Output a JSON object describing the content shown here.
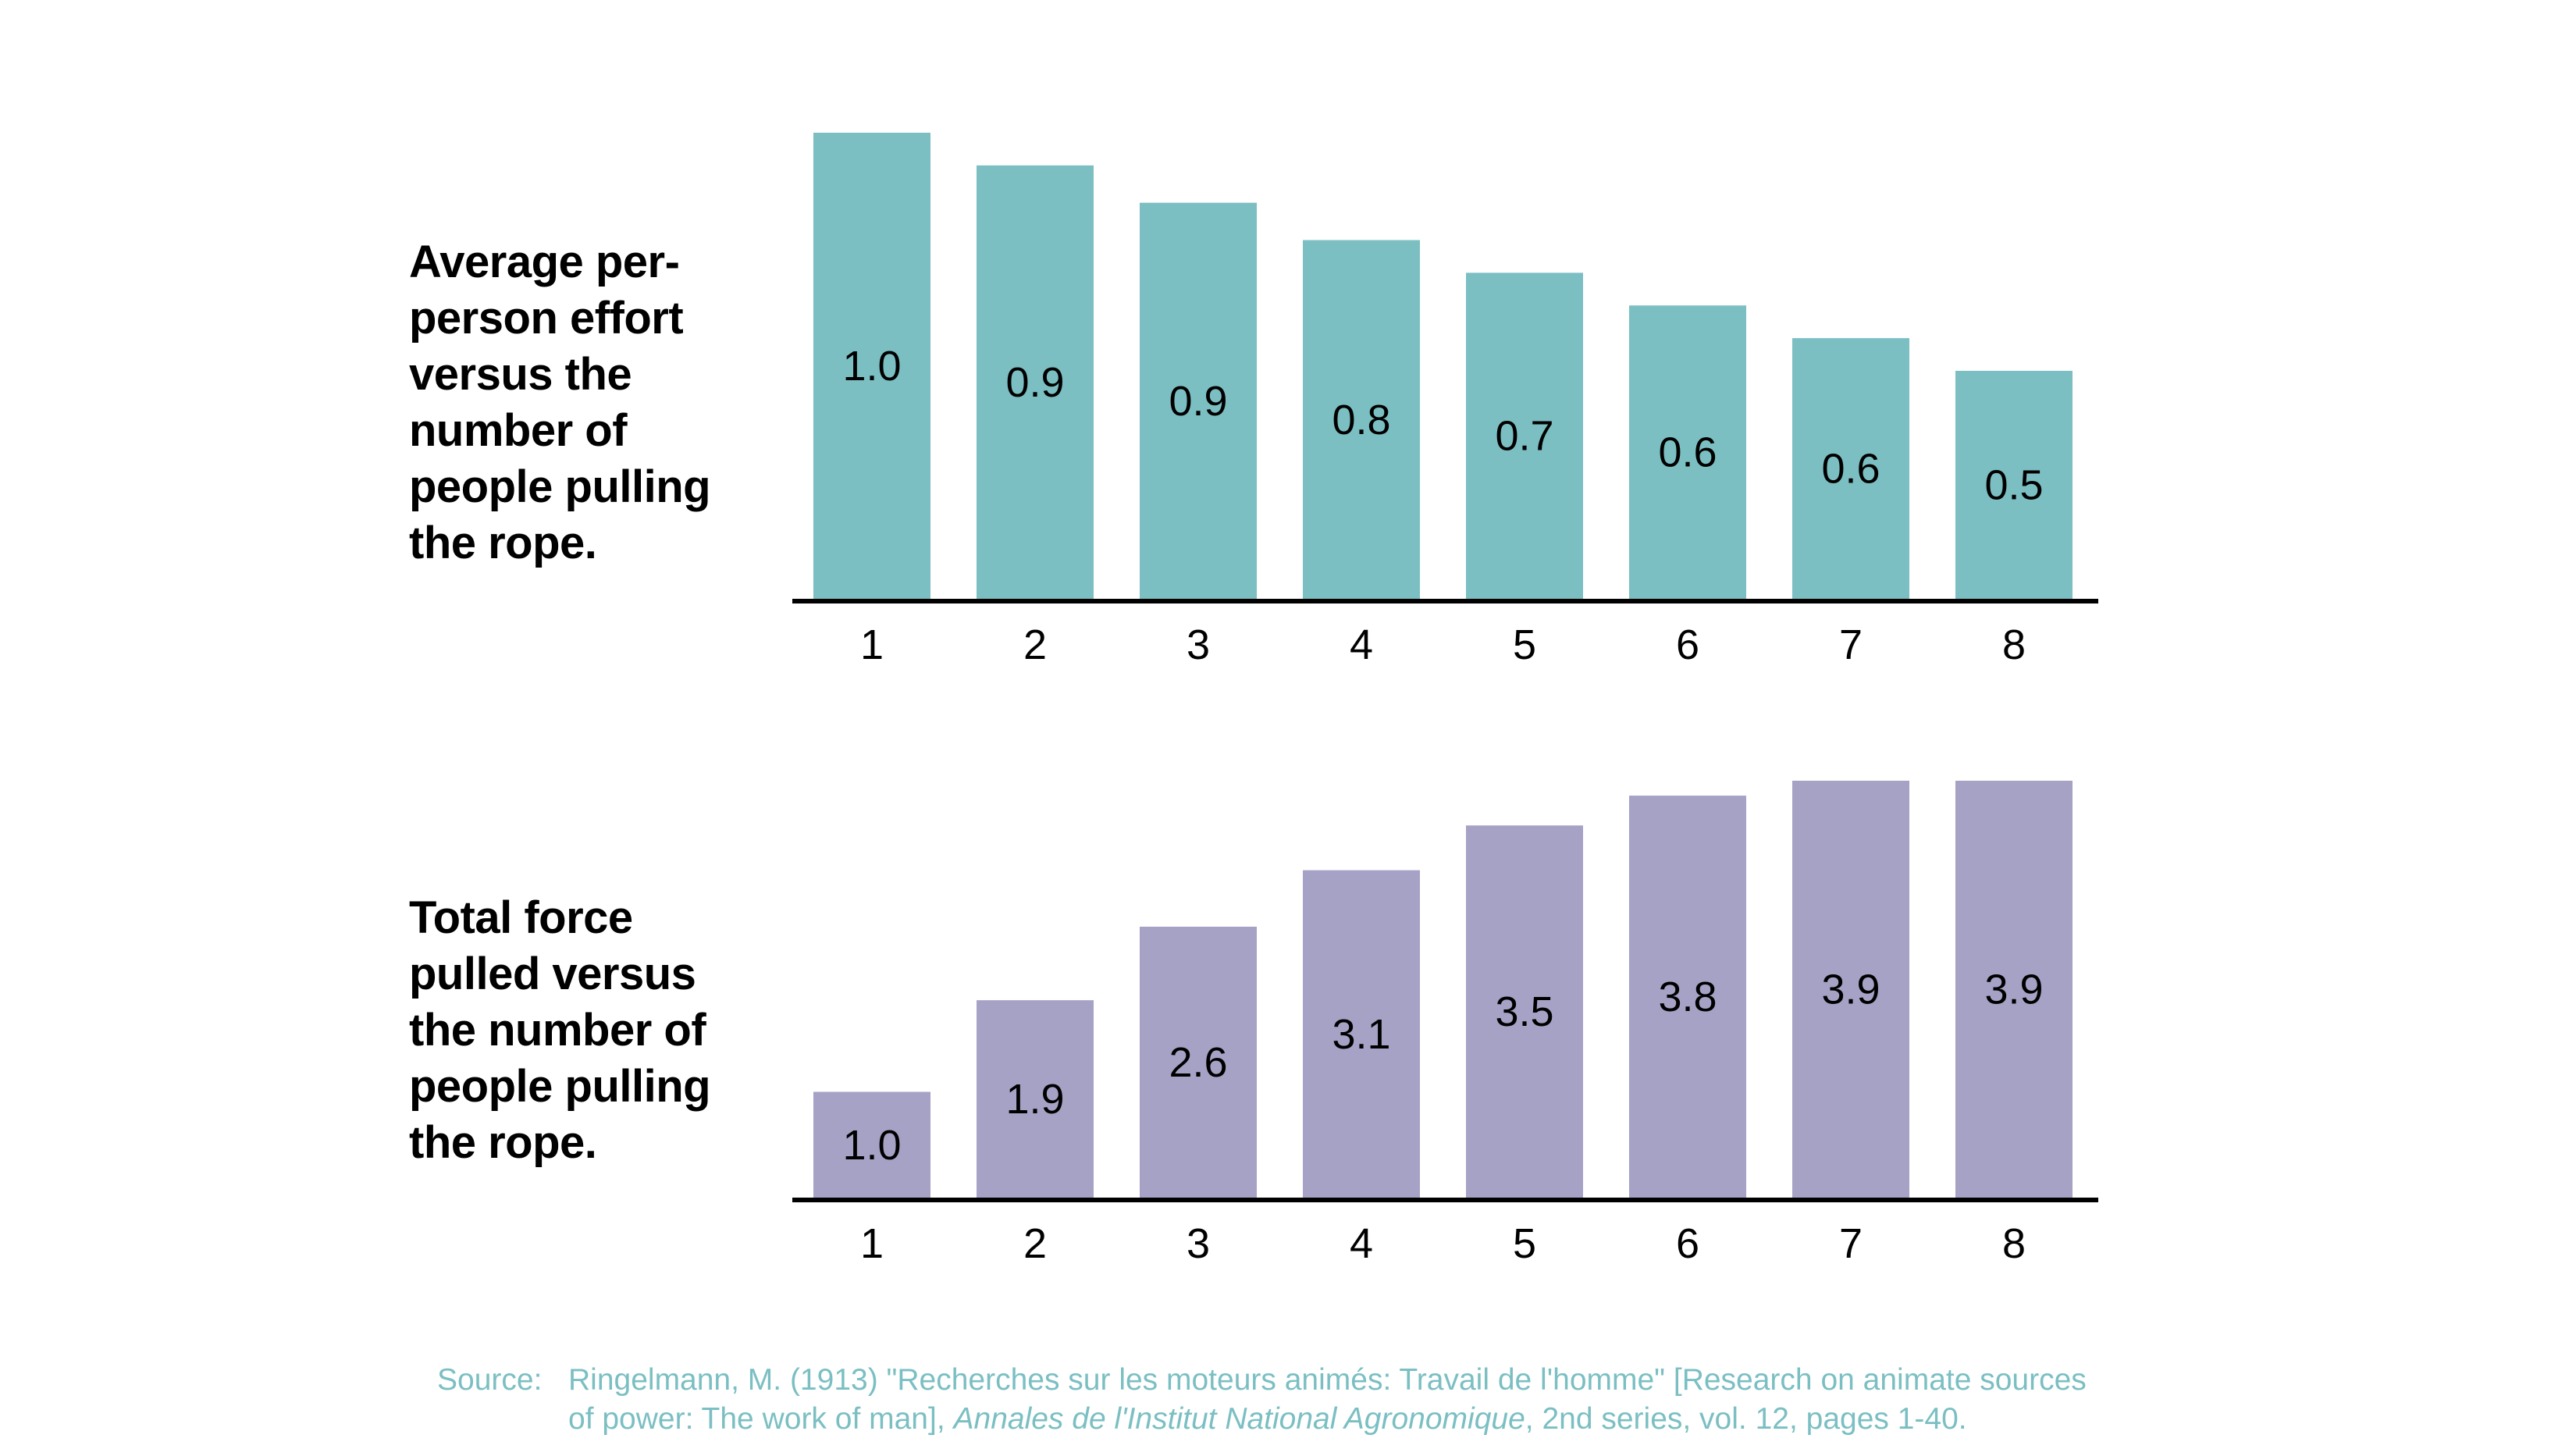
{
  "chart_data": [
    {
      "type": "bar",
      "title": "Average per-person effort versus the number of people pulling the rope.",
      "categories": [
        "1",
        "2",
        "3",
        "4",
        "5",
        "6",
        "7",
        "8"
      ],
      "values": [
        1.0,
        0.93,
        0.85,
        0.77,
        0.7,
        0.63,
        0.56,
        0.49
      ],
      "value_labels": [
        "1.0",
        "0.9",
        "0.9",
        "0.8",
        "0.7",
        "0.6",
        "0.6",
        "0.5"
      ],
      "xlabel": "",
      "ylabel": "",
      "ylim": [
        0,
        1.0
      ],
      "color": "#7bbfc3",
      "grid": false
    },
    {
      "type": "bar",
      "title": "Total force pulled versus the number of people pulling the rope.",
      "categories": [
        "1",
        "2",
        "3",
        "4",
        "5",
        "6",
        "7",
        "8"
      ],
      "values": [
        1.0,
        1.86,
        2.55,
        3.08,
        3.5,
        3.78,
        3.92,
        3.92
      ],
      "value_labels": [
        "1.0",
        "1.9",
        "2.6",
        "3.1",
        "3.5",
        "3.8",
        "3.9",
        "3.9"
      ],
      "xlabel": "",
      "ylabel": "",
      "ylim": [
        0,
        3.92
      ],
      "color": "#a5a2c6",
      "grid": false
    }
  ],
  "titles": {
    "effort_lines": [
      "Average per-",
      "person effort",
      "versus the",
      "number of",
      "people pulling",
      "the rope."
    ],
    "force_lines": [
      "Total force",
      "pulled versus",
      "the number of",
      "people pulling",
      "the rope."
    ]
  },
  "source": {
    "label": "Source:",
    "line1": "Ringelmann, M. (1913) \"Recherches sur les moteurs animés: Travail de l'homme\" [Research on animate sources",
    "line2_prefix": "of power: The work of man], ",
    "journal": "Annales de l'Institut National Agronomique",
    "line2_suffix": ", 2nd series, vol. 12, pages 1-40."
  }
}
